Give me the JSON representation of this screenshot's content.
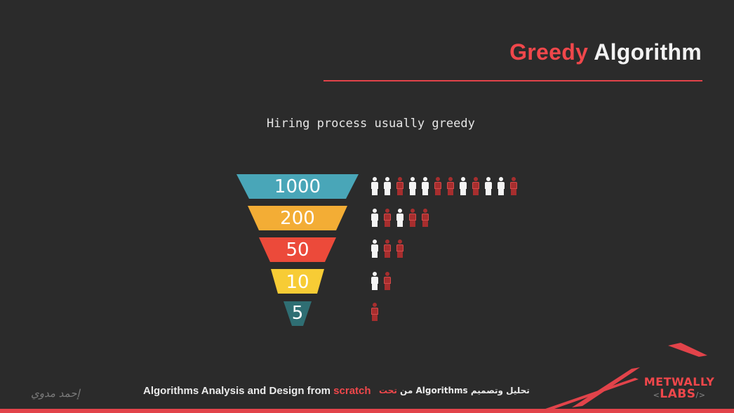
{
  "header": {
    "title_part1": "Greedy",
    "title_part2": "Algorithm"
  },
  "subtitle": "Hiring process usually greedy",
  "funnel": {
    "stages": [
      {
        "label": "1000",
        "color": "#49a6b8",
        "people": [
          "white",
          "white",
          "red",
          "white",
          "white",
          "red",
          "red",
          "white",
          "red",
          "white",
          "white",
          "red"
        ]
      },
      {
        "label": "200",
        "color": "#f3ad35",
        "people": [
          "white",
          "red",
          "white",
          "red",
          "red"
        ]
      },
      {
        "label": "50",
        "color": "#ec4a3a",
        "people": [
          "white",
          "red",
          "red"
        ]
      },
      {
        "label": "10",
        "color": "#f7cc35",
        "people": [
          "white",
          "red"
        ]
      },
      {
        "label": "5",
        "color": "#2f6e73",
        "people": [
          "red"
        ]
      }
    ]
  },
  "footer": {
    "signature": "إحمد مدوي",
    "course_part1": "Algorithms Analysis and Design from ",
    "course_part2": "scratch",
    "arabic_part1": "تحليل وتصميم Algorithms من ",
    "arabic_part2": "تحت"
  },
  "logo": {
    "line1": "METWALLY",
    "line2": "LABS",
    "bracket_left": "<",
    "bracket_right": "/>"
  },
  "colors": {
    "background": "#2b2b2b",
    "accent": "#f0474b"
  }
}
